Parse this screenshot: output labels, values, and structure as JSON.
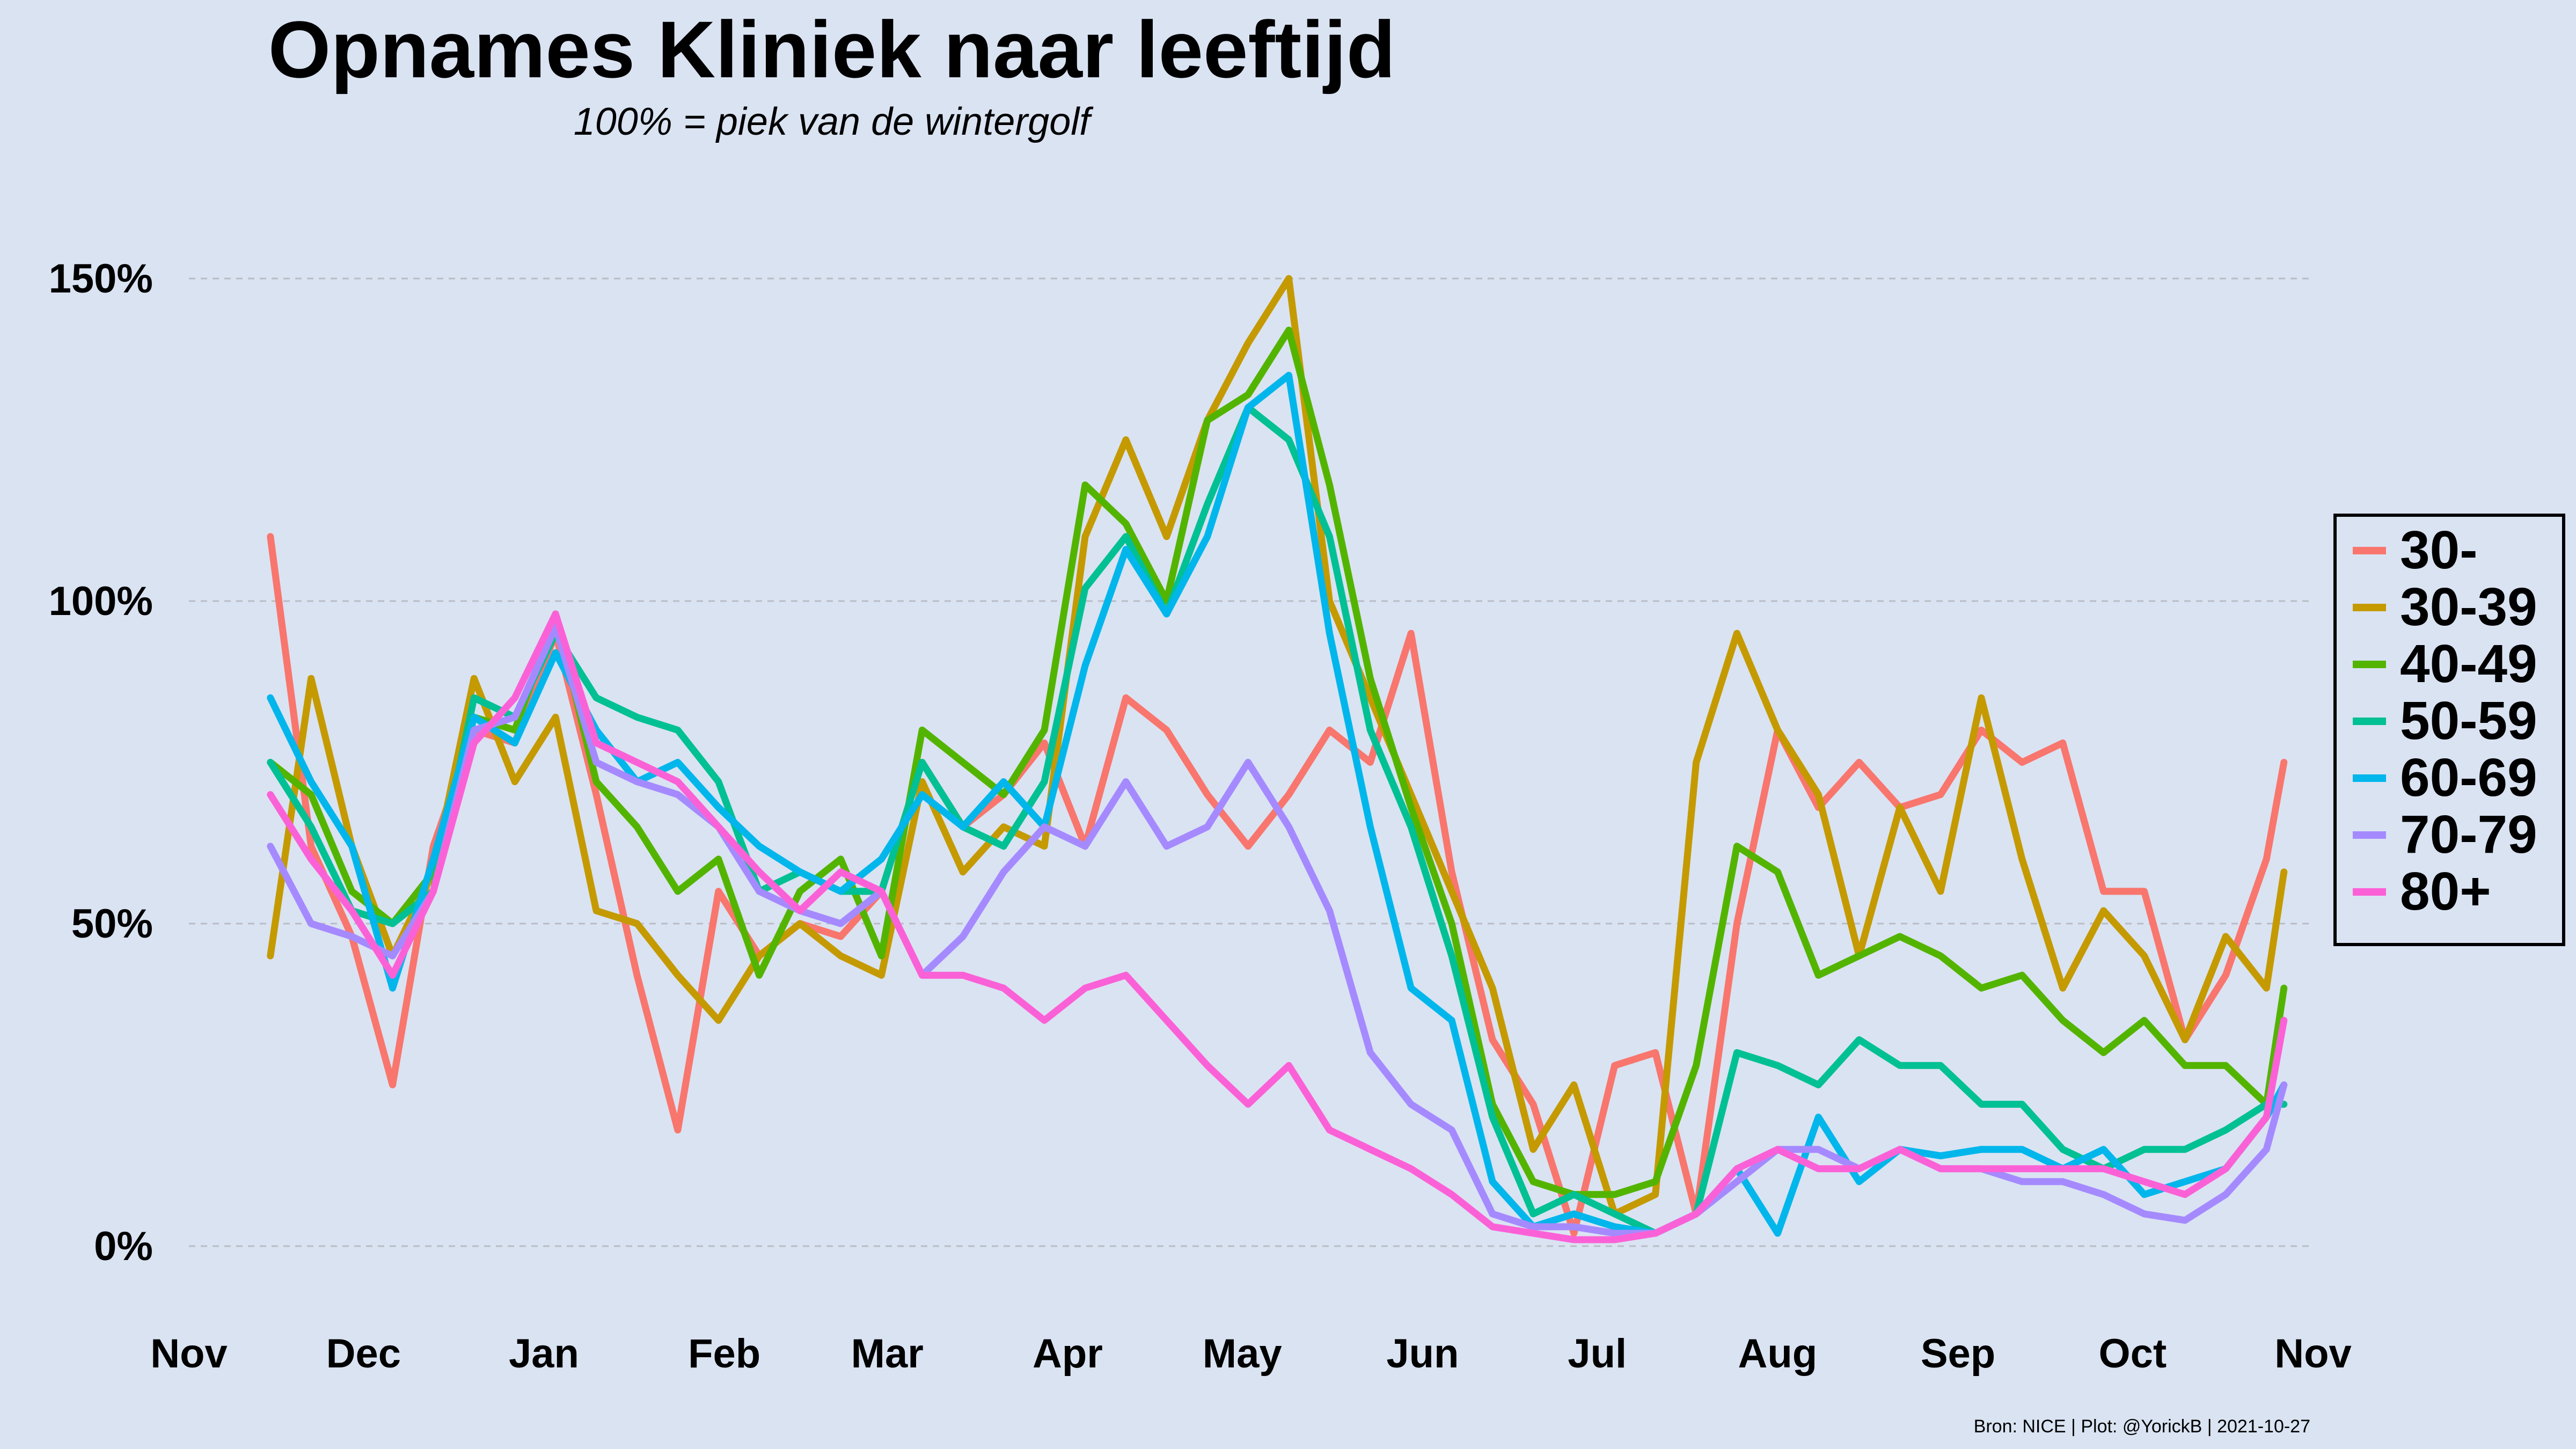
{
  "title": "Opnames Kliniek naar leeftijd",
  "subtitle": "100% = piek van de wintergolf",
  "caption": "Bron: NICE | Plot: @YorickB  |  2021-10-27",
  "chart_data": {
    "type": "line",
    "title": "Opnames Kliniek naar leeftijd",
    "subtitle": "100% = piek van de wintergolf",
    "xlabel": "",
    "ylabel": "",
    "x_ticks": [
      "Nov",
      "Dec",
      "Jan",
      "Feb",
      "Mar",
      "Apr",
      "May",
      "Jun",
      "Jul",
      "Aug",
      "Sep",
      "Oct",
      "Nov"
    ],
    "y_ticks": [
      "0%",
      "50%",
      "100%",
      "150%"
    ],
    "y_tick_values": [
      0,
      50,
      100,
      150
    ],
    "ylim": [
      -10,
      155
    ],
    "xlim": [
      "2020-11-01",
      "2021-11-01"
    ],
    "grid": "horizontal dashed",
    "legend_position": "right",
    "x": [
      "2020-11-15",
      "2020-11-22",
      "2020-11-29",
      "2020-12-06",
      "2020-12-13",
      "2020-12-20",
      "2020-12-27",
      "2021-01-03",
      "2021-01-10",
      "2021-01-17",
      "2021-01-24",
      "2021-01-31",
      "2021-02-07",
      "2021-02-14",
      "2021-02-21",
      "2021-02-28",
      "2021-03-07",
      "2021-03-14",
      "2021-03-21",
      "2021-03-28",
      "2021-04-04",
      "2021-04-11",
      "2021-04-18",
      "2021-04-25",
      "2021-05-02",
      "2021-05-09",
      "2021-05-16",
      "2021-05-23",
      "2021-05-30",
      "2021-06-06",
      "2021-06-13",
      "2021-06-20",
      "2021-06-27",
      "2021-07-04",
      "2021-07-11",
      "2021-07-18",
      "2021-07-25",
      "2021-08-01",
      "2021-08-08",
      "2021-08-15",
      "2021-08-22",
      "2021-08-29",
      "2021-09-05",
      "2021-09-12",
      "2021-09-19",
      "2021-09-26",
      "2021-10-03",
      "2021-10-10",
      "2021-10-17",
      "2021-10-24",
      "2021-10-27"
    ],
    "series": [
      {
        "name": "30-",
        "color": "#f8766d",
        "values": [
          110,
          62,
          48,
          25,
          62,
          80,
          78,
          95,
          70,
          42,
          18,
          55,
          45,
          50,
          48,
          55,
          75,
          65,
          70,
          78,
          62,
          85,
          80,
          70,
          62,
          70,
          80,
          75,
          95,
          58,
          32,
          22,
          2,
          28,
          30,
          5,
          50,
          80,
          68,
          75,
          68,
          70,
          80,
          75,
          78,
          55,
          55,
          32,
          42,
          60,
          75
        ]
      },
      {
        "name": "30-39",
        "color": "#c49a00",
        "values": [
          45,
          88,
          62,
          45,
          58,
          88,
          72,
          82,
          52,
          50,
          42,
          35,
          45,
          50,
          45,
          42,
          72,
          58,
          65,
          62,
          110,
          125,
          110,
          128,
          140,
          150,
          100,
          85,
          70,
          55,
          40,
          15,
          25,
          5,
          8,
          75,
          95,
          80,
          70,
          45,
          68,
          55,
          85,
          60,
          40,
          52,
          45,
          32,
          48,
          40,
          58
        ]
      },
      {
        "name": "40-49",
        "color": "#53b400",
        "values": [
          75,
          70,
          55,
          50,
          58,
          82,
          80,
          98,
          72,
          65,
          55,
          60,
          42,
          55,
          60,
          45,
          80,
          75,
          70,
          80,
          118,
          112,
          100,
          128,
          132,
          142,
          118,
          88,
          68,
          50,
          22,
          10,
          8,
          8,
          10,
          28,
          62,
          58,
          42,
          45,
          48,
          45,
          40,
          42,
          35,
          30,
          35,
          28,
          28,
          22,
          40
        ]
      },
      {
        "name": "50-59",
        "color": "#00c094",
        "values": [
          75,
          65,
          52,
          50,
          55,
          85,
          82,
          95,
          85,
          82,
          80,
          72,
          55,
          58,
          55,
          55,
          75,
          65,
          62,
          72,
          102,
          110,
          98,
          115,
          130,
          125,
          110,
          80,
          65,
          45,
          20,
          5,
          8,
          5,
          2,
          5,
          30,
          28,
          25,
          32,
          28,
          28,
          22,
          22,
          15,
          12,
          15,
          15,
          18,
          22,
          22
        ]
      },
      {
        "name": "60-69",
        "color": "#00b6eb",
        "values": [
          85,
          72,
          62,
          40,
          60,
          82,
          78,
          92,
          80,
          72,
          75,
          68,
          62,
          58,
          55,
          60,
          70,
          65,
          72,
          65,
          90,
          108,
          98,
          110,
          130,
          135,
          95,
          65,
          40,
          35,
          10,
          3,
          5,
          3,
          2,
          5,
          12,
          2,
          20,
          10,
          15,
          14,
          15,
          15,
          12,
          15,
          8,
          10,
          12,
          20,
          25
        ]
      },
      {
        "name": "70-79",
        "color": "#a58aff",
        "values": [
          62,
          50,
          48,
          45,
          55,
          80,
          82,
          96,
          75,
          72,
          70,
          65,
          55,
          52,
          50,
          55,
          42,
          48,
          58,
          65,
          62,
          72,
          62,
          65,
          75,
          65,
          52,
          30,
          22,
          18,
          5,
          3,
          3,
          2,
          2,
          5,
          10,
          15,
          15,
          12,
          15,
          12,
          12,
          10,
          10,
          8,
          5,
          4,
          8,
          15,
          25
        ]
      },
      {
        "name": "80+",
        "color": "#fb61d7",
        "values": [
          70,
          60,
          52,
          42,
          55,
          78,
          85,
          98,
          78,
          75,
          72,
          65,
          58,
          52,
          58,
          55,
          42,
          42,
          40,
          35,
          40,
          42,
          35,
          28,
          22,
          28,
          18,
          15,
          12,
          8,
          3,
          2,
          1,
          1,
          2,
          5,
          12,
          15,
          12,
          12,
          15,
          12,
          12,
          12,
          12,
          12,
          10,
          8,
          12,
          20,
          35
        ]
      }
    ]
  }
}
